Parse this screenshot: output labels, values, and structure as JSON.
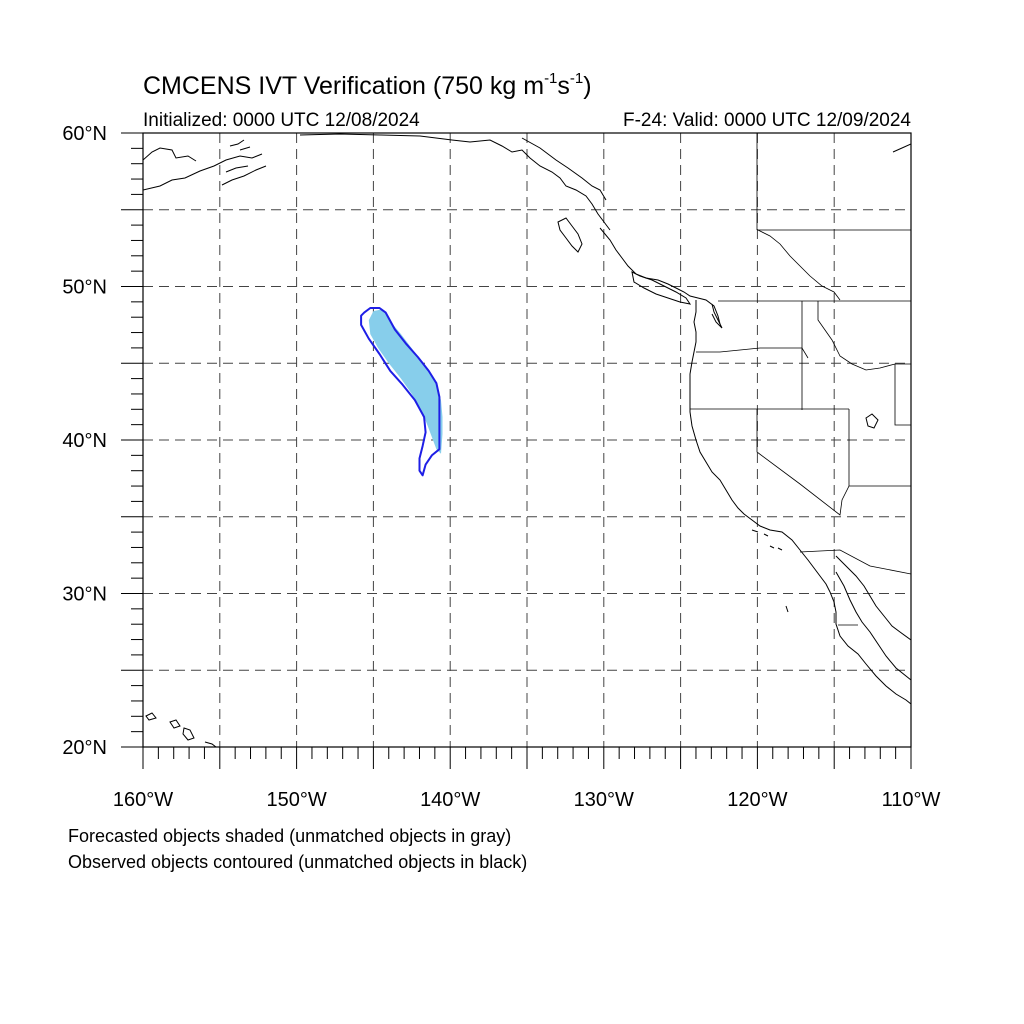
{
  "title": {
    "main": "CMCENS IVT Verification (750 kg m",
    "exp1": "-1",
    "unit2": "s",
    "exp2": "-1",
    "close": ")"
  },
  "subtitle": {
    "initialized": "Initialized: 0000 UTC 12/08/2024",
    "valid": "F-24: Valid: 0000 UTC 12/09/2024"
  },
  "map": {
    "extent": {
      "lon_min": -160,
      "lon_max": -110,
      "lat_min": 20,
      "lat_max": 60
    },
    "grid_lon_step": 5,
    "grid_lat_step": 5,
    "lat_labels": [
      {
        "lat": 60,
        "text": "60°N"
      },
      {
        "lat": 50,
        "text": "50°N"
      },
      {
        "lat": 40,
        "text": "40°N"
      },
      {
        "lat": 30,
        "text": "30°N"
      },
      {
        "lat": 20,
        "text": "20°N"
      }
    ],
    "lon_labels": [
      {
        "lon": -160,
        "text": "160°W"
      },
      {
        "lon": -150,
        "text": "150°W"
      },
      {
        "lon": -140,
        "text": "140°W"
      },
      {
        "lon": -130,
        "text": "130°W"
      },
      {
        "lon": -120,
        "text": "120°W"
      },
      {
        "lon": -110,
        "text": "110°W"
      }
    ],
    "colors": {
      "forecast_fill": "#87ceeb",
      "observed_contour": "#1e1ee6",
      "coast": "#000000",
      "grid": "#444444"
    },
    "forecast_object": [
      [
        -145.3,
        47.8
      ],
      [
        -145.0,
        48.4
      ],
      [
        -144.5,
        48.5
      ],
      [
        -144.1,
        48.2
      ],
      [
        -143.8,
        47.6
      ],
      [
        -143.2,
        46.9
      ],
      [
        -142.6,
        46.1
      ],
      [
        -142.0,
        45.3
      ],
      [
        -141.4,
        44.5
      ],
      [
        -140.9,
        43.6
      ],
      [
        -140.6,
        42.6
      ],
      [
        -140.5,
        41.5
      ],
      [
        -140.5,
        40.4
      ],
      [
        -140.6,
        39.1
      ],
      [
        -140.9,
        39.4
      ],
      [
        -141.2,
        40.2
      ],
      [
        -141.5,
        41.0
      ],
      [
        -141.9,
        42.0
      ],
      [
        -142.5,
        43.0
      ],
      [
        -143.2,
        44.0
      ],
      [
        -144.0,
        45.0
      ],
      [
        -144.7,
        46.0
      ],
      [
        -145.2,
        46.9
      ]
    ],
    "observed_object": [
      [
        -145.6,
        48.3
      ],
      [
        -145.2,
        48.6
      ],
      [
        -144.6,
        48.6
      ],
      [
        -144.2,
        48.3
      ],
      [
        -143.6,
        47.2
      ],
      [
        -142.9,
        46.3
      ],
      [
        -142.1,
        45.4
      ],
      [
        -141.4,
        44.5
      ],
      [
        -140.9,
        43.7
      ],
      [
        -140.7,
        42.8
      ],
      [
        -140.7,
        41.5
      ],
      [
        -140.7,
        39.4
      ],
      [
        -141.2,
        39.0
      ],
      [
        -141.6,
        38.4
      ],
      [
        -141.8,
        37.7
      ],
      [
        -142.0,
        38.0
      ],
      [
        -142.0,
        38.8
      ],
      [
        -141.8,
        39.6
      ],
      [
        -141.6,
        40.5
      ],
      [
        -141.7,
        41.5
      ],
      [
        -142.3,
        42.6
      ],
      [
        -143.1,
        43.6
      ],
      [
        -143.9,
        44.5
      ],
      [
        -144.6,
        45.6
      ],
      [
        -145.3,
        46.6
      ],
      [
        -145.8,
        47.5
      ],
      [
        -145.8,
        48.1
      ]
    ]
  },
  "legend": {
    "line1": "Forecasted objects shaded (unmatched objects in gray)",
    "line2": "Observed objects contoured (unmatched objects in black)"
  }
}
